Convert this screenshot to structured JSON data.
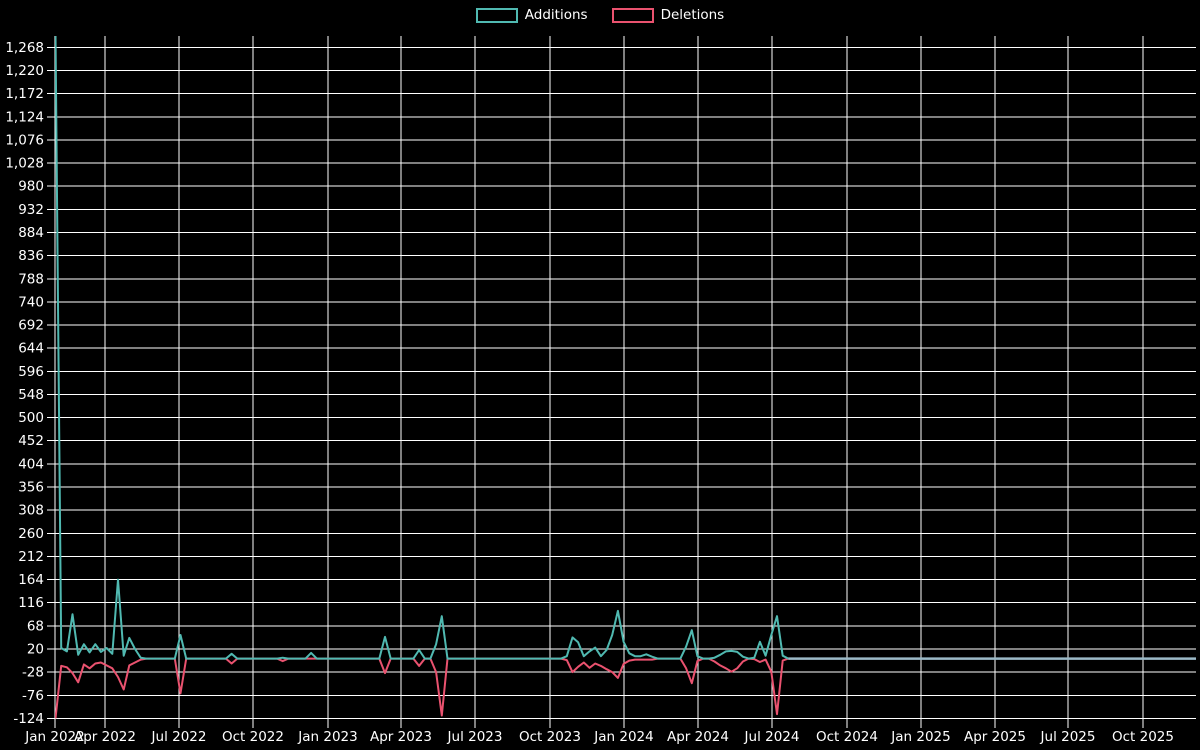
{
  "legend": {
    "items": [
      {
        "label": "Additions",
        "color": "#50b9b1"
      },
      {
        "label": "Deletions",
        "color": "#ea526f"
      }
    ]
  },
  "colors": {
    "background": "#000000",
    "gridline": "#ffffff",
    "text": "#ffffff",
    "additions": "#50b9b1",
    "deletions": "#ea526f",
    "zero_tail": "#9cbac8"
  },
  "chart_data": {
    "type": "line",
    "title": "",
    "xlabel": "",
    "ylabel": "",
    "grid": true,
    "legend_position": "top-center",
    "y_axis": {
      "tick_step": 48,
      "ylim": [
        -124,
        1268
      ],
      "tick_labels": [
        "-124",
        "-76",
        "-28",
        "20",
        "68",
        "116",
        "164",
        "212",
        "260",
        "308",
        "356",
        "404",
        "452",
        "500",
        "548",
        "596",
        "644",
        "692",
        "740",
        "788",
        "836",
        "884",
        "932",
        "980",
        "1,028",
        "1,076",
        "1,124",
        "1,172",
        "1,220",
        "1,268"
      ]
    },
    "x_axis": {
      "unit": "time (weekly data, quarterly ticks)",
      "tick_labels": [
        "Jan 2022",
        "Apr 2022",
        "Jul 2022",
        "Oct 2022",
        "Jan 2023",
        "Apr 2023",
        "Jul 2023",
        "Oct 2023",
        "Jan 2024",
        "Apr 2024",
        "Jul 2024",
        "Oct 2024",
        "Jan 2025",
        "Apr 2025",
        "Jul 2025",
        "Oct 2025"
      ]
    },
    "series_meta": [
      {
        "name": "Additions",
        "color": "#50b9b1"
      },
      {
        "name": "Deletions",
        "color": "#ea526f"
      }
    ],
    "weeks_note": "weekly points [week-start, additions, deletions]; every week between 2022-01-30 and 2024-07-21 not listed here is [*,0,0]; after 2024-07-21 both series stay 0 to the right edge (drawn as pale overlap line)",
    "range": {
      "first_week": "2022-01-30",
      "last_colored_week": "2024-07-21"
    },
    "weeks": [
      [
        "2022-01-30",
        1295,
        -124
      ],
      [
        "2022-02-06",
        22,
        -15
      ],
      [
        "2022-02-13",
        15,
        -18
      ],
      [
        "2022-02-20",
        92,
        -30
      ],
      [
        "2022-02-27",
        8,
        -49
      ],
      [
        "2022-03-06",
        30,
        -12
      ],
      [
        "2022-03-13",
        13,
        -20
      ],
      [
        "2022-03-20",
        30,
        -10
      ],
      [
        "2022-03-27",
        14,
        -8
      ],
      [
        "2022-04-03",
        22,
        -14
      ],
      [
        "2022-04-10",
        10,
        -20
      ],
      [
        "2022-04-17",
        164,
        -38
      ],
      [
        "2022-04-24",
        6,
        -64
      ],
      [
        "2022-05-01",
        43,
        -14
      ],
      [
        "2022-05-08",
        20,
        -8
      ],
      [
        "2022-05-15",
        2,
        -2
      ],
      [
        "2022-07-03",
        49,
        -72
      ],
      [
        "2022-09-04",
        10,
        -10
      ],
      [
        "2022-11-06",
        2,
        -5
      ],
      [
        "2022-12-11",
        12,
        0
      ],
      [
        "2023-03-12",
        45,
        -30
      ],
      [
        "2023-04-23",
        18,
        -15
      ],
      [
        "2023-05-14",
        30,
        -28
      ],
      [
        "2023-05-21",
        88,
        -118
      ],
      [
        "2023-10-22",
        5,
        -3
      ],
      [
        "2023-10-29",
        44,
        -28
      ],
      [
        "2023-11-05",
        34,
        -17
      ],
      [
        "2023-11-12",
        5,
        -8
      ],
      [
        "2023-11-19",
        15,
        -19
      ],
      [
        "2023-11-26",
        23,
        -10
      ],
      [
        "2023-12-03",
        5,
        -15
      ],
      [
        "2023-12-10",
        18,
        -22
      ],
      [
        "2023-12-17",
        49,
        -28
      ],
      [
        "2023-12-24",
        99,
        -40
      ],
      [
        "2023-12-31",
        35,
        -11
      ],
      [
        "2024-01-07",
        11,
        -4
      ],
      [
        "2024-01-14",
        5,
        -2
      ],
      [
        "2024-01-21",
        5,
        -2
      ],
      [
        "2024-01-28",
        9,
        -2
      ],
      [
        "2024-02-04",
        4,
        -2
      ],
      [
        "2024-03-17",
        25,
        -20
      ],
      [
        "2024-03-24",
        59,
        -51
      ],
      [
        "2024-03-31",
        5,
        -5
      ],
      [
        "2024-04-21",
        2,
        -6
      ],
      [
        "2024-04-28",
        8,
        -14
      ],
      [
        "2024-05-05",
        15,
        -20
      ],
      [
        "2024-05-12",
        16,
        -27
      ],
      [
        "2024-05-19",
        14,
        -20
      ],
      [
        "2024-05-26",
        4,
        -6
      ],
      [
        "2024-06-09",
        2,
        -1
      ],
      [
        "2024-06-16",
        35,
        -7
      ],
      [
        "2024-06-23",
        6,
        -2
      ],
      [
        "2024-06-30",
        49,
        -27
      ],
      [
        "2024-07-07",
        88,
        -115
      ],
      [
        "2024-07-14",
        6,
        -4
      ]
    ]
  }
}
